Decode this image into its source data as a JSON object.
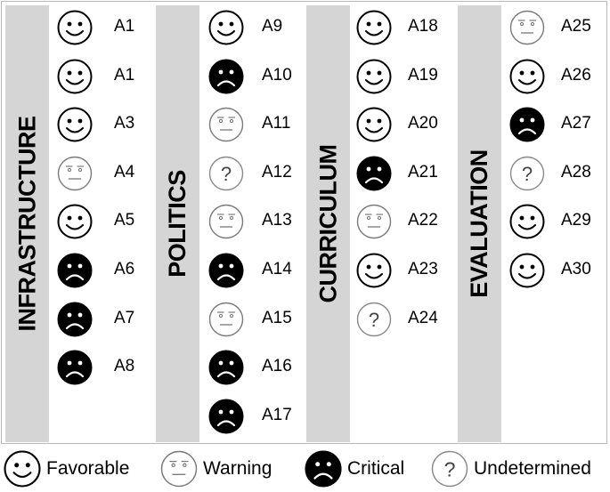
{
  "categories": [
    {
      "name": "INFRASTRUCTURE",
      "items": [
        {
          "label": "A1",
          "status": "favorable"
        },
        {
          "label": "A1",
          "status": "favorable"
        },
        {
          "label": "A3",
          "status": "favorable"
        },
        {
          "label": "A4",
          "status": "warning"
        },
        {
          "label": "A5",
          "status": "favorable"
        },
        {
          "label": "A6",
          "status": "critical"
        },
        {
          "label": "A7",
          "status": "critical"
        },
        {
          "label": "A8",
          "status": "critical"
        }
      ]
    },
    {
      "name": "POLITICS",
      "items": [
        {
          "label": "A9",
          "status": "favorable"
        },
        {
          "label": "A10",
          "status": "critical"
        },
        {
          "label": "A11",
          "status": "warning"
        },
        {
          "label": "A12",
          "status": "undetermined"
        },
        {
          "label": "A13",
          "status": "warning"
        },
        {
          "label": "A14",
          "status": "critical"
        },
        {
          "label": "A15",
          "status": "warning"
        },
        {
          "label": "A16",
          "status": "critical"
        },
        {
          "label": "A17",
          "status": "critical"
        }
      ]
    },
    {
      "name": "CURRICULUM",
      "items": [
        {
          "label": "A18",
          "status": "favorable"
        },
        {
          "label": "A19",
          "status": "favorable"
        },
        {
          "label": "A20",
          "status": "favorable"
        },
        {
          "label": "A21",
          "status": "critical"
        },
        {
          "label": "A22",
          "status": "warning"
        },
        {
          "label": "A23",
          "status": "favorable"
        },
        {
          "label": "A24",
          "status": "undetermined"
        }
      ]
    },
    {
      "name": "EVALUATION",
      "items": [
        {
          "label": "A25",
          "status": "warning"
        },
        {
          "label": "A26",
          "status": "favorable"
        },
        {
          "label": "A27",
          "status": "critical"
        },
        {
          "label": "A28",
          "status": "undetermined"
        },
        {
          "label": "A29",
          "status": "favorable"
        },
        {
          "label": "A30",
          "status": "favorable"
        }
      ]
    }
  ],
  "legend": [
    {
      "status": "favorable",
      "label": "Favorable"
    },
    {
      "status": "warning",
      "label": "Warning"
    },
    {
      "status": "critical",
      "label": "Critical"
    },
    {
      "status": "undetermined",
      "label": "Undetermined"
    }
  ],
  "colors": {
    "band": "#d5d5d5",
    "critical_fill": "#000000",
    "warning_stroke": "#7a7a7a",
    "undetermined_stroke": "#8a8a8a"
  }
}
